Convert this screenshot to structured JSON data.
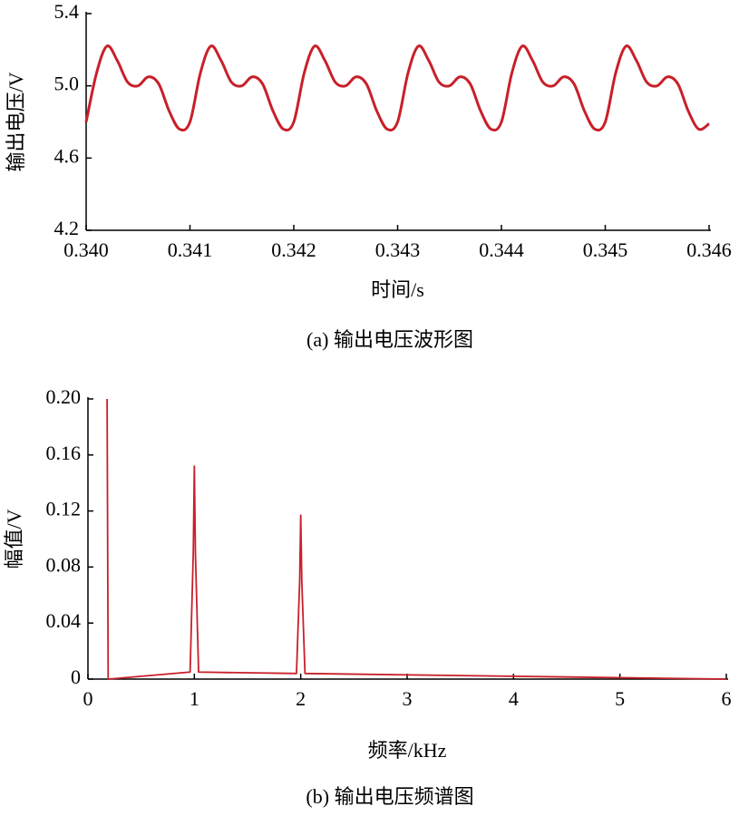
{
  "chart_data": [
    {
      "type": "line",
      "xlabel": "时间/s",
      "ylabel": "输出电压/V",
      "caption": "(a) 输出电压波形图",
      "color": "#c8202a",
      "x": [
        0.34,
        0.3401,
        0.3402,
        0.3403,
        0.3404,
        0.3405,
        0.3406,
        0.3407,
        0.3408,
        0.3409,
        0.341,
        0.3411,
        0.3412,
        0.3413,
        0.3414,
        0.3415,
        0.3416,
        0.3417,
        0.3418,
        0.3419,
        0.342,
        0.3421,
        0.3422,
        0.3423,
        0.3424,
        0.3425,
        0.3426,
        0.3427,
        0.3428,
        0.3429,
        0.343,
        0.3431,
        0.3432,
        0.3433,
        0.3434,
        0.3435,
        0.3436,
        0.3437,
        0.3438,
        0.3439,
        0.344,
        0.3441,
        0.3442,
        0.3443,
        0.3444,
        0.3445,
        0.3446,
        0.3447,
        0.3448,
        0.3449,
        0.345,
        0.3451,
        0.3452,
        0.3453,
        0.3454,
        0.3455,
        0.3456,
        0.3457,
        0.3458,
        0.3459,
        0.346
      ],
      "values": [
        4.8,
        5.07,
        5.22,
        5.14,
        5.02,
        5.0,
        5.05,
        5.01,
        4.86,
        4.76,
        4.8,
        5.07,
        5.22,
        5.14,
        5.02,
        5.0,
        5.05,
        5.01,
        4.86,
        4.76,
        4.8,
        5.07,
        5.22,
        5.14,
        5.02,
        5.0,
        5.05,
        5.01,
        4.86,
        4.76,
        4.8,
        5.07,
        5.22,
        5.14,
        5.02,
        5.0,
        5.05,
        5.01,
        4.86,
        4.76,
        4.8,
        5.07,
        5.22,
        5.14,
        5.02,
        5.0,
        5.05,
        5.01,
        4.86,
        4.76,
        4.8,
        5.07,
        5.22,
        5.14,
        5.02,
        5.0,
        5.05,
        5.01,
        4.86,
        4.76,
        4.79
      ],
      "xlim": [
        0.34,
        0.346
      ],
      "xticks": [
        {
          "value": 0.34,
          "label": "0.340"
        },
        {
          "value": 0.341,
          "label": "0.341"
        },
        {
          "value": 0.342,
          "label": "0.342"
        },
        {
          "value": 0.343,
          "label": "0.343"
        },
        {
          "value": 0.344,
          "label": "0.344"
        },
        {
          "value": 0.345,
          "label": "0.345"
        },
        {
          "value": 0.346,
          "label": "0.346"
        }
      ],
      "ylim": [
        4.2,
        5.4
      ],
      "yticks": [
        4.2,
        4.6,
        {
          "value": 5,
          "label": "5.0"
        },
        5.4
      ]
    },
    {
      "type": "line",
      "xlabel": "频率/kHz",
      "ylabel": "幅值/V",
      "caption": "(b) 输出电压频谱图",
      "color": "#c8202a",
      "x": [
        0.18,
        0.19,
        0.96,
        0.99,
        1.0,
        1.01,
        1.04,
        1.96,
        1.99,
        2.0,
        2.01,
        2.04,
        6
      ],
      "values": [
        0.2,
        0,
        0.005,
        0.09,
        0.152,
        0.09,
        0.005,
        0.004,
        0.07,
        0.117,
        0.07,
        0.004,
        0
      ],
      "xlim": [
        0,
        6
      ],
      "xticks": [
        0,
        1,
        2,
        3,
        4,
        5,
        6
      ],
      "ylim": [
        0,
        0.2
      ],
      "yticks": [
        0,
        0.04,
        0.08,
        0.12,
        0.16,
        {
          "value": 0.2,
          "label": "0.20"
        }
      ]
    }
  ]
}
